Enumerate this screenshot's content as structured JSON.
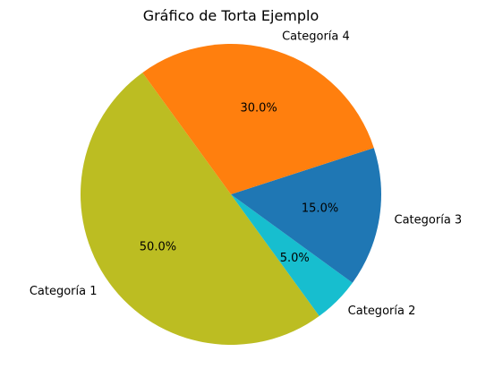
{
  "chart_data": {
    "type": "pie",
    "title": "Gráfico de Torta Ejemplo",
    "slices": [
      {
        "label": "Categoría 1",
        "value": 50.0,
        "pct_label": "50.0%",
        "color": "#bcbd22"
      },
      {
        "label": "Categoría 2",
        "value": 5.0,
        "pct_label": "5.0%",
        "color": "#17becf"
      },
      {
        "label": "Categoría 3",
        "value": 15.0,
        "pct_label": "15.0%",
        "color": "#1f77b4"
      },
      {
        "label": "Categoría 4",
        "value": 30.0,
        "pct_label": "30.0%",
        "color": "#ff7f0e"
      }
    ]
  }
}
